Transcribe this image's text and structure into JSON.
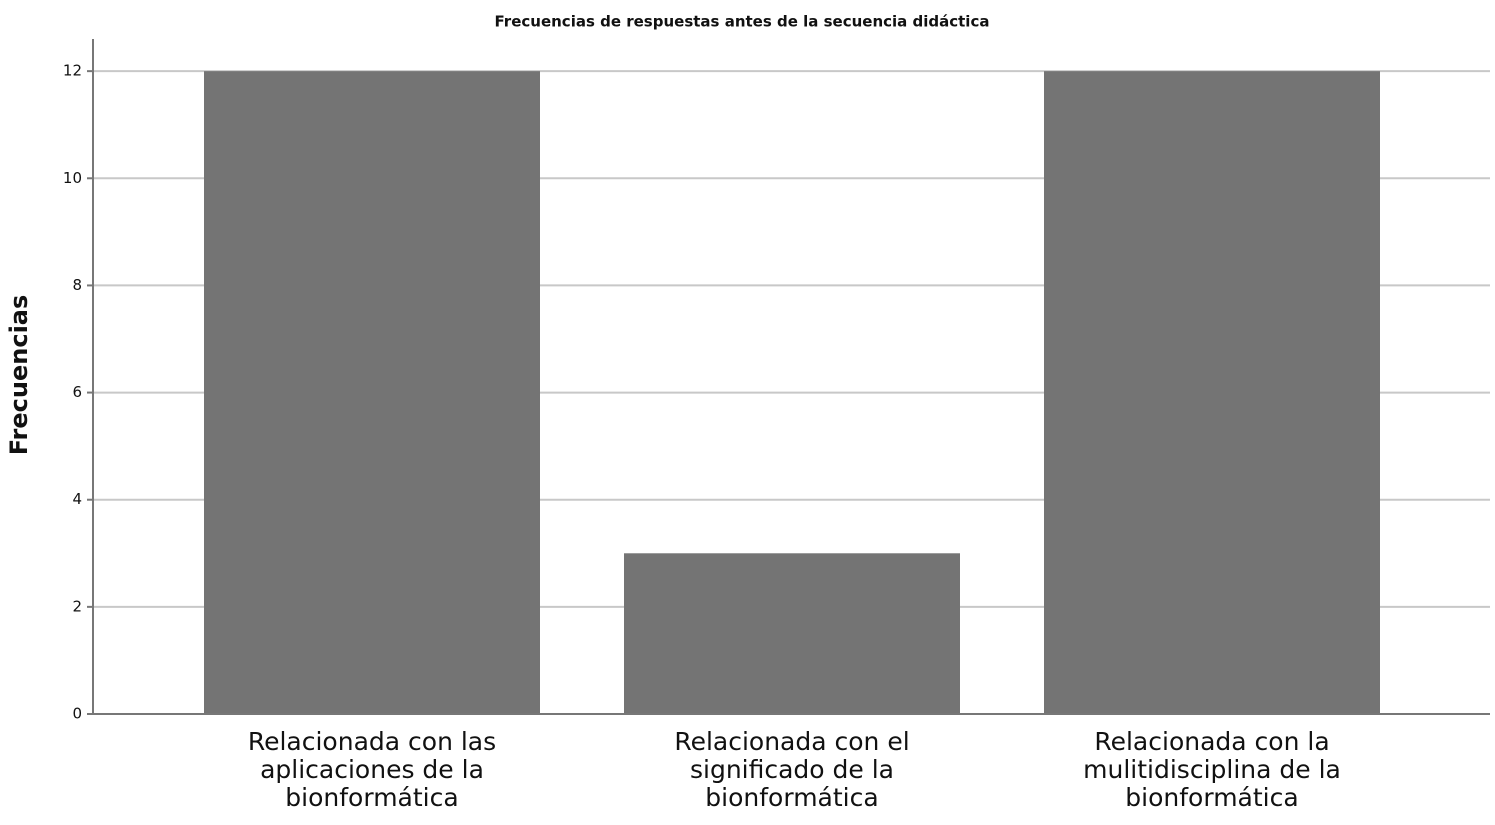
{
  "chart_data": {
    "type": "bar",
    "title": "Frecuencias de respuestas antes de la secuencia didáctica",
    "ylabel": "Frecuencias",
    "categories": [
      [
        "Relacionada con las",
        "aplicaciones de la",
        "bionformática"
      ],
      [
        "Relacionada con el",
        "significado de la",
        "bionformática"
      ],
      [
        "Relacionada con la",
        "mulitidisciplina de la",
        "bionformática"
      ]
    ],
    "values": [
      12,
      3,
      12
    ],
    "color": "#747474",
    "ylim": [
      0,
      12.6
    ],
    "yticks": [
      0,
      2,
      4,
      6,
      8,
      10,
      12
    ],
    "grid": true
  }
}
